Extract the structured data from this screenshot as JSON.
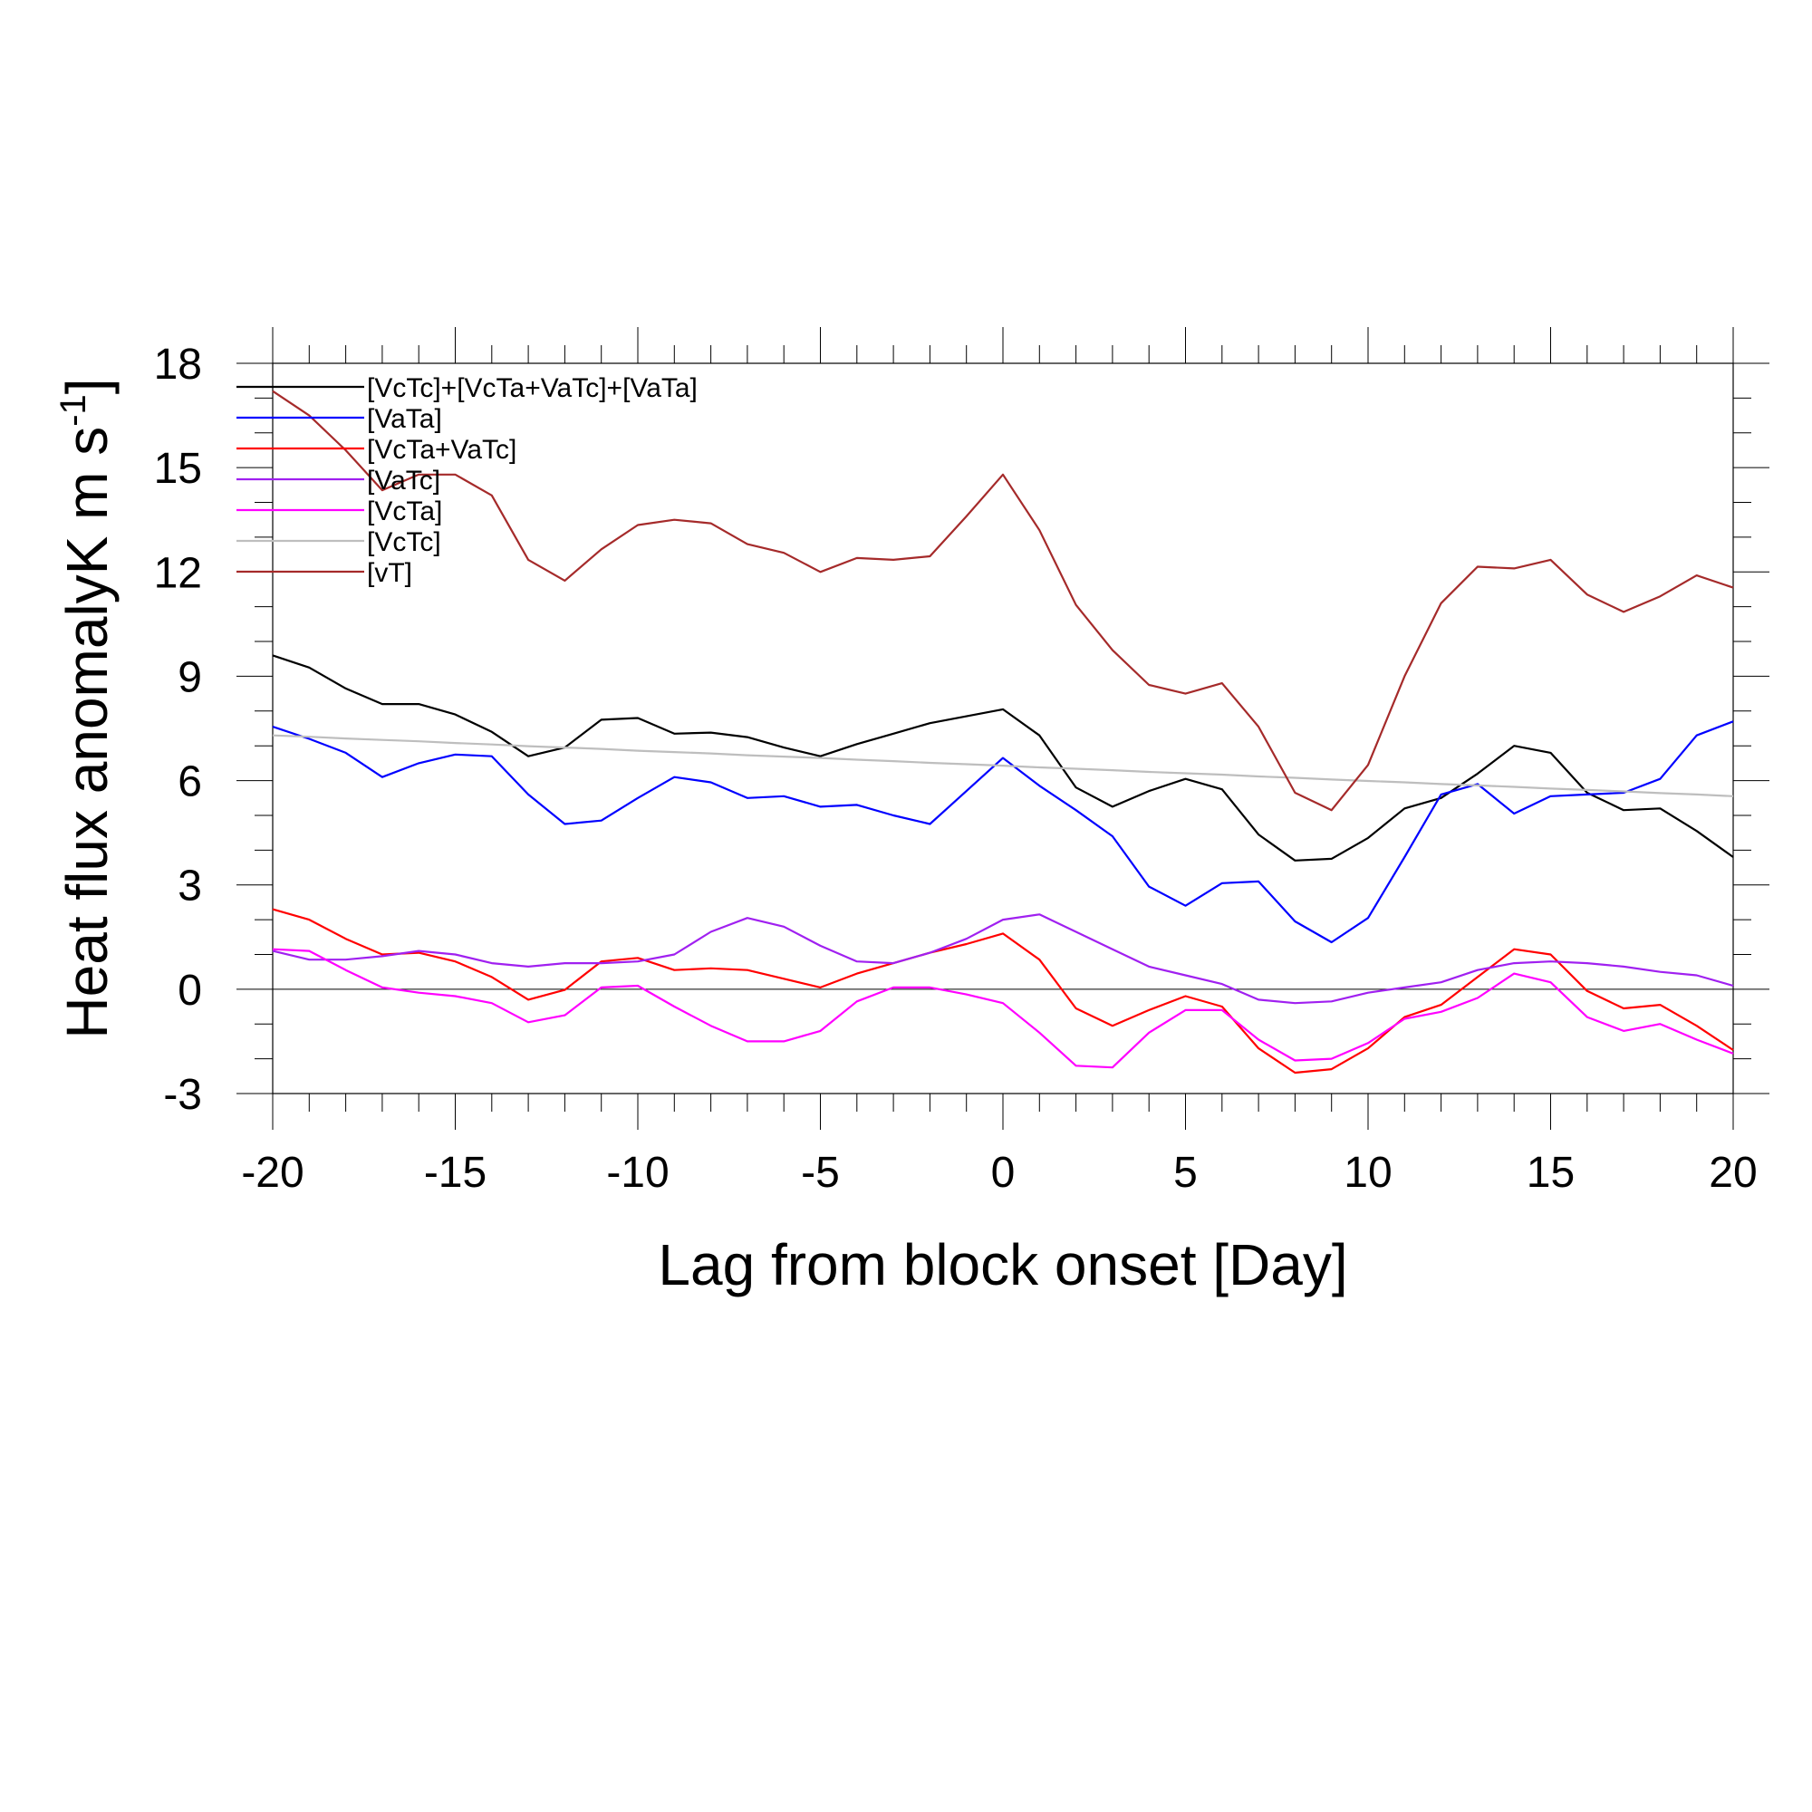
{
  "chart_data": {
    "type": "line",
    "xlabel": "Lag from block onset [Day]",
    "ylabel": "Heat flux anomalyK m s",
    "ylabel_superscript": "-1",
    "ylabel_suffix": "]",
    "xlim": [
      -20,
      20
    ],
    "ylim": [
      -3,
      18
    ],
    "xticks": [
      -20,
      -15,
      -10,
      -5,
      0,
      5,
      10,
      15,
      20
    ],
    "xtick_labels": [
      "-20",
      "-15",
      "-10",
      "-5",
      "0",
      "5",
      "10",
      "15",
      "20"
    ],
    "yticks": [
      -3,
      0,
      3,
      6,
      9,
      12,
      15,
      18
    ],
    "ytick_labels": [
      "-3",
      "0",
      "3",
      "6",
      "9",
      "12",
      "15",
      "18"
    ],
    "zero_line": true,
    "grid": false,
    "legend_position": "top-left",
    "x": [
      -20,
      -19,
      -18,
      -17,
      -16,
      -15,
      -14,
      -13,
      -12,
      -11,
      -10,
      -9,
      -8,
      -7,
      -6,
      -5,
      -4,
      -3,
      -2,
      -1,
      0,
      1,
      2,
      3,
      4,
      5,
      6,
      7,
      8,
      9,
      10,
      11,
      12,
      13,
      14,
      15,
      16,
      17,
      18,
      19,
      20
    ],
    "series": [
      {
        "name": "[VcTc]+[VcTa+VaTc]+[VaTa]",
        "color": "#000000",
        "values": [
          9.6,
          9.25,
          8.65,
          8.2,
          8.2,
          7.9,
          7.4,
          6.7,
          6.95,
          7.75,
          7.8,
          7.35,
          7.38,
          7.25,
          6.95,
          6.7,
          7.05,
          7.35,
          7.65,
          7.85,
          8.05,
          7.3,
          5.8,
          5.25,
          5.7,
          6.05,
          5.75,
          4.45,
          3.7,
          3.75,
          4.35,
          5.2,
          5.5,
          6.2,
          7.0,
          6.8,
          5.65,
          5.15,
          5.2,
          4.55,
          3.8
        ]
      },
      {
        "name": "[VaTa]",
        "color": "#0000ff",
        "values": [
          7.55,
          7.2,
          6.8,
          6.1,
          6.5,
          6.75,
          6.7,
          5.6,
          4.75,
          4.85,
          5.5,
          6.1,
          5.95,
          5.5,
          5.55,
          5.25,
          5.3,
          5.0,
          4.75,
          5.7,
          6.65,
          5.85,
          5.15,
          4.4,
          2.95,
          2.4,
          3.05,
          3.1,
          1.95,
          1.35,
          2.05,
          3.8,
          5.6,
          5.9,
          5.05,
          5.55,
          5.6,
          5.65,
          6.05,
          7.3,
          7.7
        ]
      },
      {
        "name": "[VcTa+VaTc]",
        "color": "#ff0000",
        "values": [
          2.3,
          2.0,
          1.45,
          1.0,
          1.05,
          0.8,
          0.35,
          -0.3,
          -0.02,
          0.8,
          0.9,
          0.55,
          0.6,
          0.55,
          0.3,
          0.05,
          0.45,
          0.75,
          1.05,
          1.3,
          1.6,
          0.85,
          -0.55,
          -1.05,
          -0.6,
          -0.2,
          -0.5,
          -1.7,
          -2.4,
          -2.3,
          -1.7,
          -0.8,
          -0.45,
          0.35,
          1.15,
          1.0,
          -0.05,
          -0.55,
          -0.45,
          -1.05,
          -1.75
        ]
      },
      {
        "name": "[VaTc]",
        "color": "#a020f0",
        "values": [
          1.1,
          0.85,
          0.85,
          0.95,
          1.1,
          1.0,
          0.75,
          0.65,
          0.75,
          0.75,
          0.8,
          1.0,
          1.65,
          2.05,
          1.8,
          1.25,
          0.8,
          0.75,
          1.05,
          1.45,
          2.0,
          2.15,
          1.65,
          1.15,
          0.65,
          0.4,
          0.15,
          -0.3,
          -0.4,
          -0.35,
          -0.1,
          0.05,
          0.2,
          0.55,
          0.75,
          0.8,
          0.75,
          0.65,
          0.5,
          0.4,
          0.1
        ]
      },
      {
        "name": "[VcTa]",
        "color": "#ff00ff",
        "values": [
          1.15,
          1.1,
          0.55,
          0.05,
          -0.1,
          -0.2,
          -0.4,
          -0.95,
          -0.75,
          0.05,
          0.1,
          -0.5,
          -1.05,
          -1.5,
          -1.5,
          -1.2,
          -0.35,
          0.05,
          0.05,
          -0.15,
          -0.4,
          -1.25,
          -2.2,
          -2.25,
          -1.25,
          -0.6,
          -0.6,
          -1.45,
          -2.05,
          -2.0,
          -1.55,
          -0.85,
          -0.65,
          -0.25,
          0.45,
          0.2,
          -0.8,
          -1.2,
          -1.0,
          -1.45,
          -1.85
        ]
      },
      {
        "name": "[VcTc]",
        "color": "#bebebe",
        "values": [
          7.3,
          7.26,
          7.21,
          7.17,
          7.13,
          7.08,
          7.04,
          6.99,
          6.95,
          6.91,
          6.86,
          6.82,
          6.78,
          6.73,
          6.69,
          6.65,
          6.6,
          6.56,
          6.51,
          6.47,
          6.43,
          6.38,
          6.34,
          6.3,
          6.25,
          6.21,
          6.17,
          6.12,
          6.08,
          6.03,
          5.99,
          5.95,
          5.9,
          5.86,
          5.82,
          5.77,
          5.73,
          5.69,
          5.64,
          5.6,
          5.55
        ]
      },
      {
        "name": "[vT]",
        "color": "#a52a2a",
        "values": [
          17.2,
          16.5,
          15.5,
          14.35,
          14.8,
          14.8,
          14.2,
          12.35,
          11.75,
          12.65,
          13.35,
          13.5,
          13.4,
          12.8,
          12.55,
          12.0,
          12.4,
          12.35,
          12.45,
          13.6,
          14.8,
          13.2,
          11.05,
          9.75,
          8.75,
          8.5,
          8.8,
          7.55,
          5.65,
          5.15,
          6.45,
          9.0,
          11.1,
          12.15,
          12.1,
          12.35,
          11.35,
          10.85,
          11.3,
          11.9,
          11.55
        ]
      }
    ]
  }
}
